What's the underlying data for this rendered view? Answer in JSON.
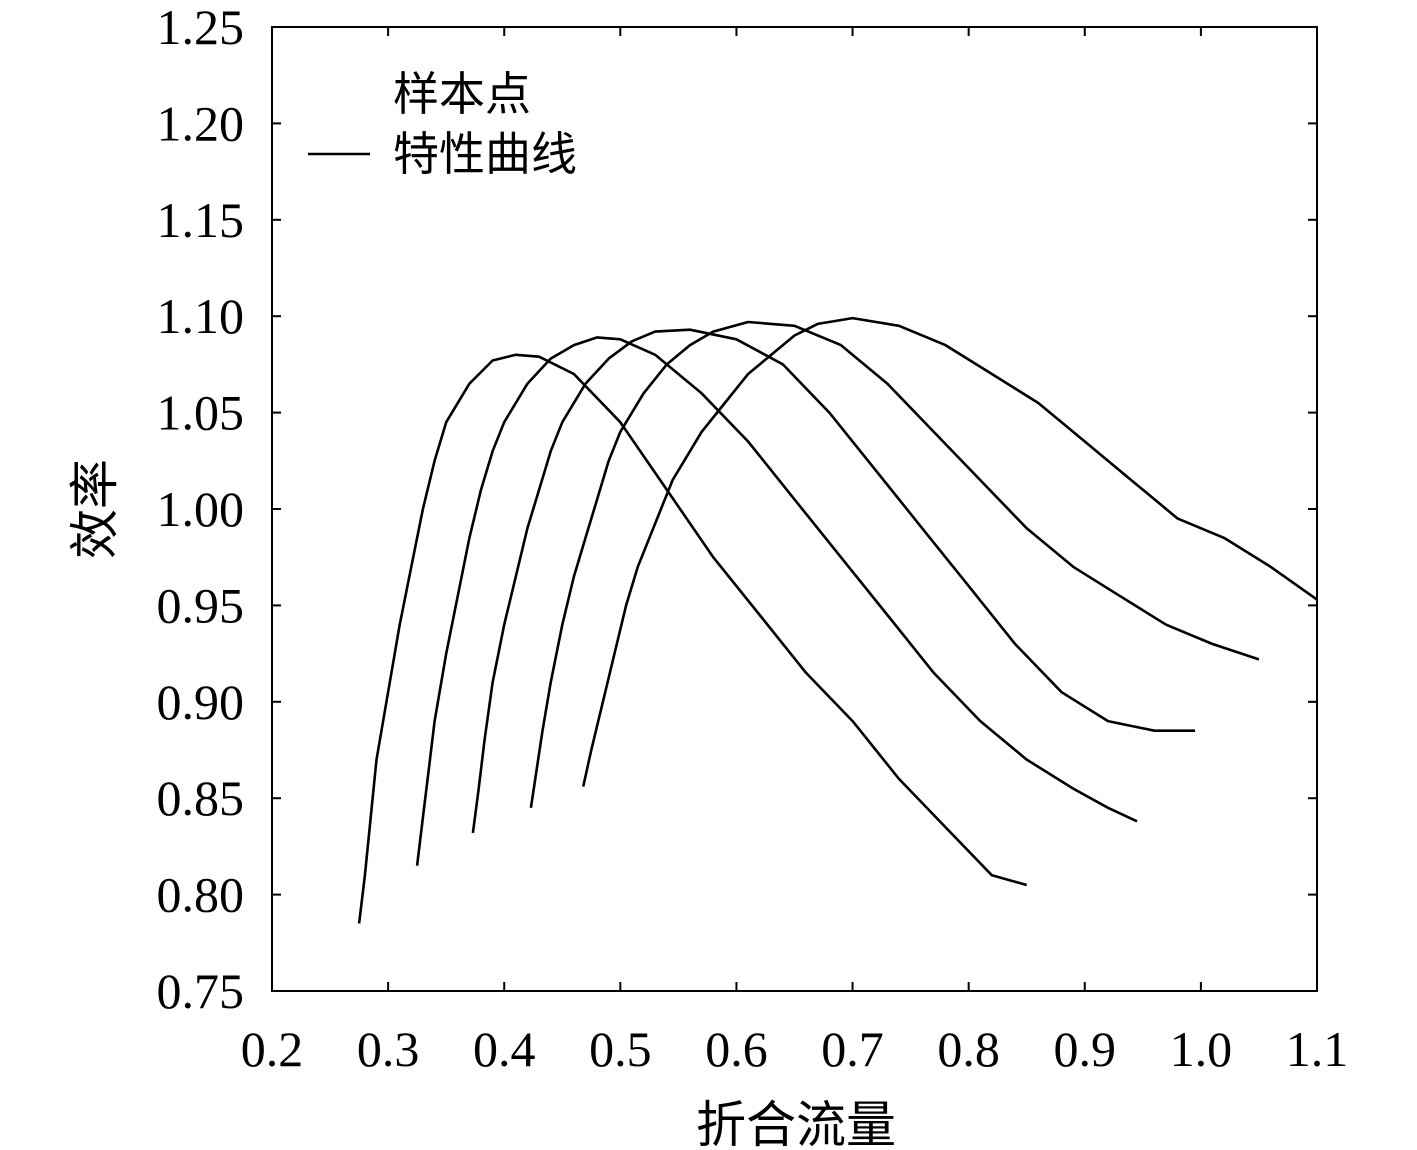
{
  "chart_data": {
    "type": "line",
    "title": "",
    "xlabel": "折合流量",
    "ylabel": "效率",
    "xlim": [
      0.2,
      1.1
    ],
    "ylim": [
      0.75,
      1.25
    ],
    "xticks": [
      "0.2",
      "0.3",
      "0.4",
      "0.5",
      "0.6",
      "0.7",
      "0.8",
      "0.9",
      "1.0",
      "1.1"
    ],
    "yticks": [
      "0.75",
      "0.80",
      "0.85",
      "0.90",
      "0.95",
      "1.00",
      "1.05",
      "1.10",
      "1.15",
      "1.20",
      "1.25"
    ],
    "grid": false,
    "legend": {
      "position": "top-left",
      "entries": [
        {
          "symbol": "*",
          "label": "样本点"
        },
        {
          "symbol": "line",
          "label": "特性曲线"
        }
      ]
    },
    "series": [
      {
        "x": [
          0.275,
          0.28,
          0.285,
          0.29,
          0.3,
          0.31,
          0.32,
          0.33,
          0.34,
          0.35,
          0.37,
          0.39,
          0.41,
          0.43,
          0.46,
          0.5,
          0.54,
          0.58,
          0.62,
          0.66,
          0.7,
          0.74,
          0.78,
          0.82,
          0.85
        ],
        "y": [
          0.785,
          0.81,
          0.84,
          0.87,
          0.905,
          0.94,
          0.97,
          1.0,
          1.025,
          1.045,
          1.065,
          1.077,
          1.08,
          1.079,
          1.07,
          1.045,
          1.01,
          0.975,
          0.945,
          0.915,
          0.89,
          0.86,
          0.835,
          0.81,
          0.805
        ]
      },
      {
        "x": [
          0.325,
          0.33,
          0.335,
          0.34,
          0.35,
          0.36,
          0.37,
          0.38,
          0.39,
          0.4,
          0.42,
          0.44,
          0.46,
          0.48,
          0.5,
          0.53,
          0.57,
          0.61,
          0.65,
          0.69,
          0.73,
          0.77,
          0.81,
          0.85,
          0.89,
          0.92,
          0.945
        ],
        "y": [
          0.815,
          0.84,
          0.865,
          0.89,
          0.925,
          0.955,
          0.985,
          1.01,
          1.03,
          1.045,
          1.065,
          1.078,
          1.085,
          1.089,
          1.088,
          1.08,
          1.06,
          1.035,
          1.005,
          0.975,
          0.945,
          0.915,
          0.89,
          0.87,
          0.855,
          0.845,
          0.838
        ]
      },
      {
        "x": [
          0.373,
          0.378,
          0.383,
          0.39,
          0.4,
          0.41,
          0.42,
          0.43,
          0.44,
          0.45,
          0.47,
          0.49,
          0.51,
          0.53,
          0.56,
          0.6,
          0.64,
          0.68,
          0.72,
          0.76,
          0.8,
          0.84,
          0.88,
          0.92,
          0.96,
          0.995
        ],
        "y": [
          0.832,
          0.855,
          0.88,
          0.91,
          0.94,
          0.965,
          0.99,
          1.01,
          1.03,
          1.045,
          1.065,
          1.078,
          1.087,
          1.092,
          1.093,
          1.088,
          1.075,
          1.05,
          1.02,
          0.99,
          0.96,
          0.93,
          0.905,
          0.89,
          0.885,
          0.885
        ]
      },
      {
        "x": [
          0.423,
          0.428,
          0.433,
          0.44,
          0.45,
          0.46,
          0.47,
          0.48,
          0.49,
          0.5,
          0.52,
          0.54,
          0.56,
          0.58,
          0.61,
          0.65,
          0.69,
          0.73,
          0.77,
          0.81,
          0.85,
          0.89,
          0.93,
          0.97,
          1.01,
          1.05
        ],
        "y": [
          0.845,
          0.865,
          0.885,
          0.91,
          0.94,
          0.965,
          0.985,
          1.005,
          1.025,
          1.04,
          1.06,
          1.075,
          1.085,
          1.092,
          1.097,
          1.095,
          1.085,
          1.065,
          1.04,
          1.015,
          0.99,
          0.97,
          0.955,
          0.94,
          0.93,
          0.922
        ]
      },
      {
        "x": [
          0.468,
          0.475,
          0.485,
          0.495,
          0.505,
          0.515,
          0.525,
          0.535,
          0.545,
          0.555,
          0.57,
          0.59,
          0.61,
          0.63,
          0.65,
          0.67,
          0.7,
          0.74,
          0.78,
          0.82,
          0.86,
          0.9,
          0.94,
          0.98,
          1.02,
          1.06,
          1.1
        ],
        "y": [
          0.856,
          0.875,
          0.9,
          0.925,
          0.95,
          0.97,
          0.985,
          1.0,
          1.015,
          1.025,
          1.04,
          1.055,
          1.07,
          1.08,
          1.09,
          1.096,
          1.099,
          1.095,
          1.085,
          1.07,
          1.055,
          1.035,
          1.015,
          0.995,
          0.985,
          0.97,
          0.953
        ]
      }
    ]
  }
}
